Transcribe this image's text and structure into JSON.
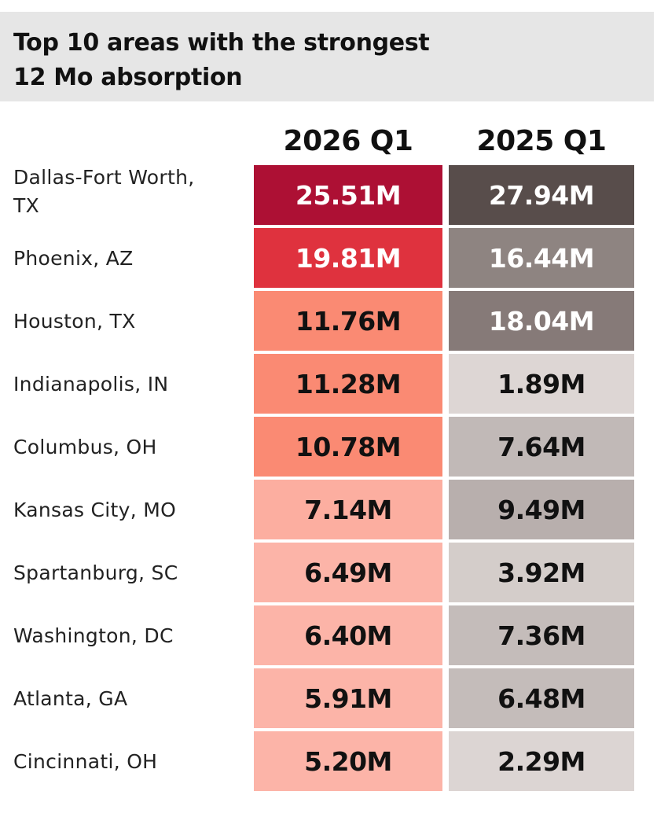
{
  "chart_data": {
    "type": "table",
    "title": "Top 10 areas with the strongest 12 Mo absorption",
    "title_lines": [
      "Top 10 areas with the strongest",
      "12 Mo absorption"
    ],
    "columns": [
      "2026 Q1",
      "2025 Q1"
    ],
    "unit": "M",
    "rows": [
      {
        "area": "Dallas-Fort Worth, TX",
        "area_lines": [
          "Dallas-Fort Worth,",
          "TX"
        ],
        "q1_2026": 25.51,
        "q1_2026_label": "25.51M",
        "q1_2025": 27.94,
        "q1_2025_label": "27.94M"
      },
      {
        "area": "Phoenix, AZ",
        "q1_2026": 19.81,
        "q1_2026_label": "19.81M",
        "q1_2025": 16.44,
        "q1_2025_label": "16.44M"
      },
      {
        "area": "Houston, TX",
        "q1_2026": 11.76,
        "q1_2026_label": "11.76M",
        "q1_2025": 18.04,
        "q1_2025_label": "18.04M"
      },
      {
        "area": "Indianapolis, IN",
        "q1_2026": 11.28,
        "q1_2026_label": "11.28M",
        "q1_2025": 1.89,
        "q1_2025_label": "1.89M"
      },
      {
        "area": "Columbus, OH",
        "q1_2026": 10.78,
        "q1_2026_label": "10.78M",
        "q1_2025": 7.64,
        "q1_2025_label": "7.64M"
      },
      {
        "area": "Kansas City, MO",
        "q1_2026": 7.14,
        "q1_2026_label": "7.14M",
        "q1_2025": 9.49,
        "q1_2025_label": "9.49M"
      },
      {
        "area": "Spartanburg, SC",
        "q1_2026": 6.49,
        "q1_2026_label": "6.49M",
        "q1_2025": 3.92,
        "q1_2025_label": "3.92M"
      },
      {
        "area": "Washington, DC",
        "q1_2026": 6.4,
        "q1_2026_label": "6.40M",
        "q1_2025": 7.36,
        "q1_2025_label": "7.36M"
      },
      {
        "area": "Atlanta, GA",
        "q1_2026": 5.91,
        "q1_2026_label": "5.91M",
        "q1_2025": 6.48,
        "q1_2025_label": "6.48M"
      },
      {
        "area": "Cincinnati, OH",
        "q1_2026": 5.2,
        "q1_2026_label": "5.20M",
        "q1_2025": 2.29,
        "q1_2025_label": "2.29M"
      }
    ],
    "colors": {
      "q1_2026": [
        "#ad1034",
        "#df323e",
        "#fa8a73",
        "#fa8a73",
        "#fa8a73",
        "#fcaea0",
        "#fcb4a8",
        "#fcb4a8",
        "#fcb4a8",
        "#fcb4a8"
      ],
      "q1_2025": [
        "#584d4b",
        "#8e8481",
        "#867a78",
        "#ddd6d4",
        "#c1b9b7",
        "#b8afad",
        "#d4cdca",
        "#c4bcba",
        "#c4bcba",
        "#dcd5d3"
      ]
    },
    "text_colors": {
      "q1_2026": [
        "#ffffff",
        "#ffffff",
        "#111111",
        "#111111",
        "#111111",
        "#111111",
        "#111111",
        "#111111",
        "#111111",
        "#111111"
      ],
      "q1_2025": [
        "#ffffff",
        "#ffffff",
        "#ffffff",
        "#111111",
        "#111111",
        "#111111",
        "#111111",
        "#111111",
        "#111111",
        "#111111"
      ]
    }
  }
}
